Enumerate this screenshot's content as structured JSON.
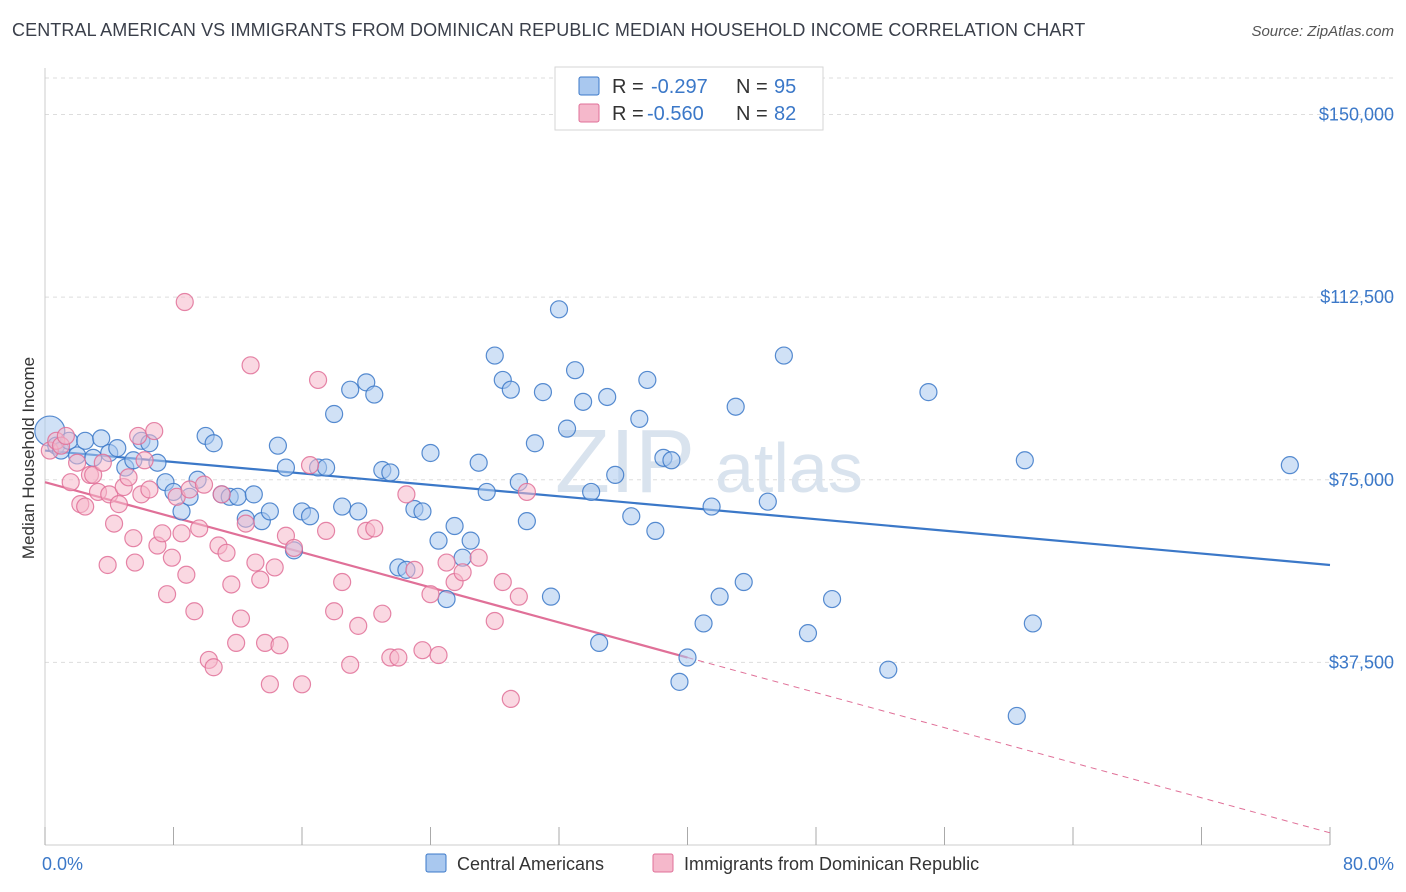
{
  "title": "CENTRAL AMERICAN VS IMMIGRANTS FROM DOMINICAN REPUBLIC MEDIAN HOUSEHOLD INCOME CORRELATION CHART",
  "source": "Source: ZipAtlas.com",
  "watermark": {
    "zip": "ZIP",
    "atlas": "atlas"
  },
  "colors": {
    "blue": "#3b78c8",
    "blue_fill": "#a9c8ef",
    "pink": "#e07098",
    "pink_fill": "#f5b8cb",
    "grid": "#dddddd"
  },
  "legend": {
    "r_label": "R =",
    "n_label": "N =",
    "rows": [
      {
        "r": "-0.297",
        "n": "95",
        "series": "blue"
      },
      {
        "r": "-0.560",
        "n": "82",
        "series": "pink"
      }
    ]
  },
  "bottom_legend": [
    {
      "label": "Central Americans",
      "series": "blue"
    },
    {
      "label": "Immigrants from Dominican Republic",
      "series": "pink"
    }
  ],
  "chart_data": {
    "type": "scatter",
    "title": "CENTRAL AMERICAN VS IMMIGRANTS FROM DOMINICAN REPUBLIC MEDIAN HOUSEHOLD INCOME CORRELATION CHART",
    "xlabel": "",
    "ylabel": "Median Household Income",
    "xlim": [
      0,
      80
    ],
    "ylim": [
      0,
      157500
    ],
    "x_tick_labels": [
      "0.0%",
      "80.0%"
    ],
    "y_ticks": [
      37500,
      75000,
      112500,
      150000
    ],
    "y_tick_labels": [
      "$37,500",
      "$75,000",
      "$112,500",
      "$150,000"
    ],
    "grid": true,
    "series": [
      {
        "name": "Central Americans",
        "color": "#3b78c8",
        "r": -0.297,
        "n": 95,
        "trend": {
          "x": [
            0,
            80
          ],
          "y": [
            81000,
            57500
          ]
        },
        "points": [
          [
            0.3,
            85000
          ],
          [
            0.7,
            82000
          ],
          [
            1.0,
            81000
          ],
          [
            1.5,
            83000
          ],
          [
            2.0,
            80000
          ],
          [
            2.5,
            83000
          ],
          [
            3.0,
            79500
          ],
          [
            3.5,
            83500
          ],
          [
            4.0,
            80500
          ],
          [
            4.5,
            81500
          ],
          [
            5.0,
            77500
          ],
          [
            5.5,
            79000
          ],
          [
            6.0,
            83000
          ],
          [
            6.5,
            82500
          ],
          [
            7.0,
            78500
          ],
          [
            7.5,
            74500
          ],
          [
            8.0,
            72500
          ],
          [
            8.5,
            68500
          ],
          [
            9.0,
            71500
          ],
          [
            9.5,
            75000
          ],
          [
            10.0,
            84000
          ],
          [
            10.5,
            82500
          ],
          [
            11.0,
            72000
          ],
          [
            11.5,
            71500
          ],
          [
            12.0,
            71500
          ],
          [
            12.5,
            67000
          ],
          [
            13.0,
            72000
          ],
          [
            13.5,
            66500
          ],
          [
            14.0,
            68500
          ],
          [
            14.5,
            82000
          ],
          [
            15.0,
            77500
          ],
          [
            15.5,
            60500
          ],
          [
            16.0,
            68500
          ],
          [
            16.5,
            67500
          ],
          [
            17.0,
            77500
          ],
          [
            17.5,
            77500
          ],
          [
            18.0,
            88500
          ],
          [
            18.5,
            69500
          ],
          [
            19.0,
            93500
          ],
          [
            19.5,
            68500
          ],
          [
            20.0,
            95000
          ],
          [
            20.5,
            92500
          ],
          [
            21.0,
            77000
          ],
          [
            21.5,
            76500
          ],
          [
            22.0,
            57000
          ],
          [
            22.5,
            56500
          ],
          [
            23.0,
            69000
          ],
          [
            23.5,
            68500
          ],
          [
            24.0,
            80500
          ],
          [
            24.5,
            62500
          ],
          [
            25.0,
            50500
          ],
          [
            25.5,
            65500
          ],
          [
            26.0,
            59000
          ],
          [
            26.5,
            62500
          ],
          [
            27.0,
            78500
          ],
          [
            27.5,
            72500
          ],
          [
            28.0,
            100500
          ],
          [
            28.5,
            95500
          ],
          [
            29.0,
            93500
          ],
          [
            29.5,
            74500
          ],
          [
            30.0,
            66500
          ],
          [
            30.5,
            82500
          ],
          [
            31.0,
            93000
          ],
          [
            31.5,
            51000
          ],
          [
            32.0,
            110000
          ],
          [
            32.5,
            85500
          ],
          [
            33.0,
            97500
          ],
          [
            33.5,
            91000
          ],
          [
            34.0,
            72500
          ],
          [
            34.5,
            41500
          ],
          [
            35.0,
            92000
          ],
          [
            35.5,
            76000
          ],
          [
            36.5,
            67500
          ],
          [
            37.0,
            87500
          ],
          [
            37.5,
            95500
          ],
          [
            38.0,
            64500
          ],
          [
            38.5,
            79500
          ],
          [
            39.0,
            79000
          ],
          [
            39.5,
            33500
          ],
          [
            40.0,
            38500
          ],
          [
            41.0,
            45500
          ],
          [
            41.5,
            69500
          ],
          [
            42.0,
            51000
          ],
          [
            43.0,
            90000
          ],
          [
            43.5,
            54000
          ],
          [
            45.0,
            70500
          ],
          [
            46.0,
            100500
          ],
          [
            47.5,
            43500
          ],
          [
            49.0,
            50500
          ],
          [
            52.5,
            36000
          ],
          [
            55.0,
            93000
          ],
          [
            60.5,
            26500
          ],
          [
            61.0,
            79000
          ],
          [
            61.5,
            45500
          ],
          [
            77.5,
            78000
          ]
        ]
      },
      {
        "name": "Immigrants from Dominican Republic",
        "color": "#e07098",
        "r": -0.56,
        "n": 82,
        "trend": {
          "x": [
            0,
            40
          ],
          "y": [
            74500,
            38500
          ]
        },
        "trend_dashed": {
          "x": [
            40,
            80
          ],
          "y": [
            38500,
            2500
          ]
        },
        "points": [
          [
            0.3,
            81000
          ],
          [
            0.7,
            83000
          ],
          [
            1.0,
            82000
          ],
          [
            1.3,
            84000
          ],
          [
            1.6,
            74500
          ],
          [
            2.0,
            78500
          ],
          [
            2.2,
            70000
          ],
          [
            2.5,
            69500
          ],
          [
            2.8,
            76000
          ],
          [
            3.0,
            76000
          ],
          [
            3.3,
            72500
          ],
          [
            3.6,
            78500
          ],
          [
            4.0,
            72000
          ],
          [
            4.3,
            66000
          ],
          [
            4.6,
            70000
          ],
          [
            4.9,
            73500
          ],
          [
            5.2,
            75500
          ],
          [
            5.5,
            63000
          ],
          [
            5.8,
            84000
          ],
          [
            6.0,
            72000
          ],
          [
            6.2,
            79000
          ],
          [
            6.5,
            73000
          ],
          [
            6.8,
            85000
          ],
          [
            7.0,
            61500
          ],
          [
            7.3,
            64000
          ],
          [
            7.6,
            51500
          ],
          [
            7.9,
            59000
          ],
          [
            8.2,
            71500
          ],
          [
            8.5,
            64000
          ],
          [
            8.8,
            55500
          ],
          [
            9.0,
            73000
          ],
          [
            9.3,
            48000
          ],
          [
            9.6,
            65000
          ],
          [
            9.9,
            74000
          ],
          [
            10.2,
            38000
          ],
          [
            10.5,
            36500
          ],
          [
            10.8,
            61500
          ],
          [
            11.0,
            72000
          ],
          [
            11.3,
            60000
          ],
          [
            11.6,
            53500
          ],
          [
            11.9,
            41500
          ],
          [
            12.2,
            46500
          ],
          [
            12.5,
            66000
          ],
          [
            12.8,
            98500
          ],
          [
            13.1,
            58000
          ],
          [
            13.4,
            54500
          ],
          [
            13.7,
            41500
          ],
          [
            14.0,
            33000
          ],
          [
            14.3,
            57000
          ],
          [
            14.6,
            41000
          ],
          [
            15.0,
            63500
          ],
          [
            15.5,
            61000
          ],
          [
            16.0,
            33000
          ],
          [
            16.5,
            78000
          ],
          [
            17.0,
            95500
          ],
          [
            17.5,
            64500
          ],
          [
            18.0,
            48000
          ],
          [
            18.5,
            54000
          ],
          [
            19.0,
            37000
          ],
          [
            19.5,
            45000
          ],
          [
            20.0,
            64500
          ],
          [
            20.5,
            65000
          ],
          [
            21.0,
            47500
          ],
          [
            21.5,
            38500
          ],
          [
            22.0,
            38500
          ],
          [
            22.5,
            72000
          ],
          [
            23.0,
            56500
          ],
          [
            23.5,
            40000
          ],
          [
            24.0,
            51500
          ],
          [
            24.5,
            39000
          ],
          [
            25.0,
            58000
          ],
          [
            25.5,
            54000
          ],
          [
            26.0,
            56000
          ],
          [
            27.0,
            59000
          ],
          [
            28.0,
            46000
          ],
          [
            28.5,
            54000
          ],
          [
            29.0,
            30000
          ],
          [
            29.5,
            51000
          ],
          [
            30.0,
            72500
          ],
          [
            8.7,
            111500
          ],
          [
            5.6,
            58000
          ],
          [
            3.9,
            57500
          ]
        ]
      }
    ]
  }
}
